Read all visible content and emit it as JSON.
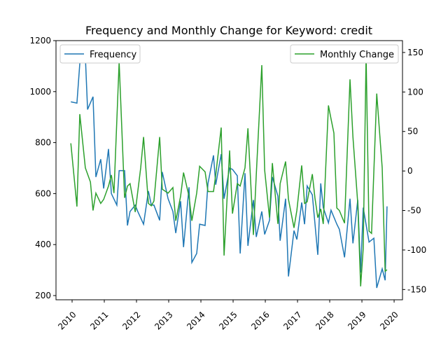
{
  "chart_data": {
    "type": "line",
    "title": "Frequency and Monthly Change for Keyword: credit",
    "xlim": [
      2009.5,
      2020.26
    ],
    "xticks": [
      2010,
      2011,
      2012,
      2013,
      2014,
      2015,
      2016,
      2017,
      2018,
      2019,
      2020
    ],
    "ylim": [
      183.5,
      1200
    ],
    "yticks": [
      200,
      400,
      600,
      800,
      1000,
      1200
    ],
    "y2lim": [
      -163,
      165
    ],
    "y2ticks": [
      -150,
      -100,
      -50,
      0,
      50,
      100,
      150
    ],
    "series": [
      {
        "name": "Frequency",
        "color": "#1f77b4",
        "legend": "upper left",
        "x": [
          2009.96,
          2010.15,
          2010.24,
          2010.33,
          2010.41,
          2010.48,
          2010.65,
          2010.74,
          2010.89,
          2010.98,
          2011.13,
          2011.22,
          2011.39,
          2011.46,
          2011.63,
          2011.72,
          2011.8,
          2011.96,
          2012.04,
          2012.22,
          2012.37,
          2012.46,
          2012.54,
          2012.72,
          2012.8,
          2012.98,
          2013.13,
          2013.22,
          2013.37,
          2013.46,
          2013.63,
          2013.72,
          2013.87,
          2013.96,
          2014.13,
          2014.22,
          2014.39,
          2014.46,
          2014.63,
          2014.72,
          2014.89,
          2014.98,
          2015.13,
          2015.22,
          2015.37,
          2015.46,
          2015.63,
          2015.72,
          2015.89,
          2015.98,
          2016.13,
          2016.22,
          2016.39,
          2016.46,
          2016.63,
          2016.72,
          2016.89,
          2016.98,
          2017.13,
          2017.22,
          2017.3,
          2017.46,
          2017.63,
          2017.72,
          2017.8,
          2017.96,
          2018.04,
          2018.22,
          2018.3,
          2018.46,
          2018.63,
          2018.72,
          2018.87,
          2018.96,
          2019.04,
          2019.22,
          2019.37,
          2019.46,
          2019.63,
          2019.72,
          2019.78
        ],
        "values": [
          960,
          955,
          1110,
          1130,
          1140,
          930,
          980,
          665,
          735,
          620,
          775,
          600,
          555,
          690,
          690,
          475,
          530,
          555,
          530,
          480,
          610,
          555,
          555,
          495,
          685,
          580,
          530,
          445,
          570,
          390,
          625,
          330,
          365,
          480,
          475,
          640,
          750,
          635,
          755,
          580,
          700,
          695,
          670,
          365,
          680,
          395,
          575,
          430,
          530,
          440,
          495,
          665,
          590,
          415,
          580,
          275,
          455,
          420,
          565,
          480,
          630,
          595,
          360,
          640,
          545,
          485,
          535,
          480,
          460,
          350,
          580,
          405,
          575,
          290,
          545,
          410,
          425,
          230,
          305,
          260,
          550
        ]
      },
      {
        "name": "Monthly Change",
        "color": "#2ca02c",
        "axis": "y2",
        "legend": "upper right",
        "x": [
          2009.96,
          2010.15,
          2010.24,
          2010.41,
          2010.57,
          2010.65,
          2010.74,
          2010.89,
          2010.98,
          2011.13,
          2011.22,
          2011.3,
          2011.46,
          2011.63,
          2011.72,
          2011.8,
          2011.96,
          2012.13,
          2012.22,
          2012.37,
          2012.46,
          2012.54,
          2012.72,
          2012.8,
          2012.98,
          2013.13,
          2013.22,
          2013.37,
          2013.46,
          2013.63,
          2013.72,
          2013.87,
          2013.96,
          2014.13,
          2014.22,
          2014.39,
          2014.46,
          2014.63,
          2014.72,
          2014.89,
          2014.98,
          2015.13,
          2015.22,
          2015.37,
          2015.46,
          2015.63,
          2015.72,
          2015.89,
          2015.98,
          2016.13,
          2016.22,
          2016.39,
          2016.46,
          2016.63,
          2016.72,
          2016.89,
          2016.98,
          2017.13,
          2017.22,
          2017.3,
          2017.46,
          2017.54,
          2017.63,
          2017.72,
          2017.8,
          2017.96,
          2018.04,
          2018.13,
          2018.22,
          2018.3,
          2018.46,
          2018.63,
          2018.72,
          2018.87,
          2018.96,
          2019.04,
          2019.13,
          2019.22,
          2019.3,
          2019.46,
          2019.63,
          2019.72,
          2019.78
        ],
        "values": [
          35,
          -45,
          72,
          4,
          -14,
          -50,
          -28,
          -41,
          -36,
          -19,
          -5,
          -28,
          138,
          -34,
          -19,
          -16,
          -52,
          4,
          43,
          -41,
          -44,
          -38,
          43,
          -23,
          -28,
          -21,
          -63,
          -32,
          -2,
          -32,
          -63,
          -28,
          6,
          -1,
          -26,
          -26,
          -5,
          55,
          -107,
          26,
          -54,
          -16,
          -19,
          4,
          54,
          -81,
          -5,
          134,
          1,
          -59,
          10,
          -67,
          -16,
          12,
          -36,
          -72,
          -50,
          7,
          -41,
          -39,
          -4,
          -34,
          -59,
          -48,
          -67,
          83,
          66,
          48,
          -47,
          -50,
          -66,
          116,
          43,
          -41,
          -146,
          -98,
          147,
          -76,
          -79,
          98,
          4,
          -127,
          -125
        ]
      }
    ]
  }
}
